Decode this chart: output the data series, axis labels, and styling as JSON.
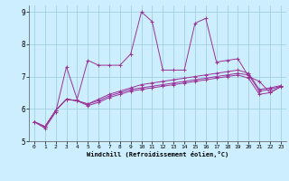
{
  "background_color": "#cceeff",
  "grid_color": "#99ccdd",
  "line_color": "#993399",
  "xlim": [
    -0.5,
    23.5
  ],
  "ylim": [
    5.0,
    9.2
  ],
  "xlabel": "Windchill (Refroidissement éolien,°C)",
  "yticks": [
    5,
    6,
    7,
    8,
    9
  ],
  "xticks": [
    0,
    1,
    2,
    3,
    4,
    5,
    6,
    7,
    8,
    9,
    10,
    11,
    12,
    13,
    14,
    15,
    16,
    17,
    18,
    19,
    20,
    21,
    22,
    23
  ],
  "series1": [
    5.6,
    5.4,
    5.9,
    7.3,
    6.3,
    7.5,
    7.35,
    7.35,
    7.35,
    7.7,
    9.0,
    8.7,
    7.2,
    7.2,
    7.2,
    8.65,
    8.8,
    7.45,
    7.5,
    7.55,
    7.0,
    6.85,
    6.5,
    6.7
  ],
  "series2": [
    5.6,
    5.45,
    5.95,
    6.3,
    6.25,
    6.15,
    6.25,
    6.4,
    6.5,
    6.6,
    6.65,
    6.7,
    6.75,
    6.8,
    6.85,
    6.9,
    6.95,
    7.0,
    7.05,
    7.1,
    7.05,
    6.55,
    6.6,
    6.7
  ],
  "series3": [
    5.6,
    5.45,
    5.95,
    6.3,
    6.25,
    6.15,
    6.3,
    6.45,
    6.55,
    6.65,
    6.75,
    6.8,
    6.85,
    6.9,
    6.95,
    7.0,
    7.05,
    7.1,
    7.15,
    7.2,
    7.1,
    6.6,
    6.65,
    6.72
  ],
  "series4": [
    5.6,
    5.45,
    5.95,
    6.3,
    6.25,
    6.1,
    6.2,
    6.35,
    6.45,
    6.55,
    6.6,
    6.65,
    6.7,
    6.75,
    6.8,
    6.85,
    6.9,
    6.95,
    7.0,
    7.05,
    6.95,
    6.45,
    6.5,
    6.68
  ]
}
